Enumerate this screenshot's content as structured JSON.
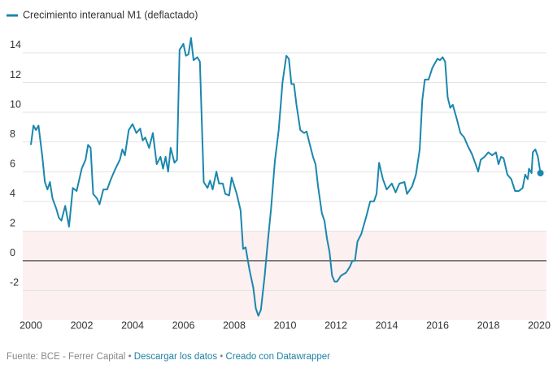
{
  "chart_data": {
    "type": "line",
    "x": [
      2000.0,
      2000.1,
      2000.2,
      2000.3,
      2000.45,
      2000.55,
      2000.65,
      2000.75,
      2000.85,
      2001.0,
      2001.1,
      2001.2,
      2001.35,
      2001.5,
      2001.65,
      2001.8,
      2002.0,
      2002.15,
      2002.25,
      2002.35,
      2002.45,
      2002.6,
      2002.7,
      2002.85,
      2003.0,
      2003.15,
      2003.3,
      2003.5,
      2003.6,
      2003.7,
      2003.85,
      2004.0,
      2004.15,
      2004.3,
      2004.4,
      2004.5,
      2004.65,
      2004.8,
      2004.95,
      2005.1,
      2005.2,
      2005.3,
      2005.4,
      2005.5,
      2005.65,
      2005.75,
      2005.85,
      2006.0,
      2006.1,
      2006.2,
      2006.3,
      2006.4,
      2006.55,
      2006.65,
      2006.8,
      2006.95,
      2007.05,
      2007.15,
      2007.3,
      2007.4,
      2007.55,
      2007.65,
      2007.8,
      2007.9,
      2008.1,
      2008.25,
      2008.35,
      2008.45,
      2008.6,
      2008.75,
      2008.85,
      2008.95,
      2009.05,
      2009.2,
      2009.3,
      2009.45,
      2009.6,
      2009.75,
      2009.9,
      2010.05,
      2010.15,
      2010.25,
      2010.35,
      2010.45,
      2010.6,
      2010.75,
      2010.85,
      2010.95,
      2011.1,
      2011.2,
      2011.3,
      2011.45,
      2011.55,
      2011.65,
      2011.75,
      2011.85,
      2011.95,
      2012.05,
      2012.2,
      2012.4,
      2012.55,
      2012.65,
      2012.75,
      2012.85,
      2013.0,
      2013.1,
      2013.2,
      2013.35,
      2013.5,
      2013.6,
      2013.7,
      2013.85,
      2014.0,
      2014.2,
      2014.35,
      2014.5,
      2014.7,
      2014.8,
      2015.0,
      2015.15,
      2015.3,
      2015.4,
      2015.5,
      2015.65,
      2015.8,
      2016.0,
      2016.1,
      2016.2,
      2016.3,
      2016.4,
      2016.5,
      2016.6,
      2016.75,
      2016.9,
      2017.05,
      2017.2,
      2017.35,
      2017.5,
      2017.6,
      2017.7,
      2017.85,
      2018.0,
      2018.15,
      2018.3,
      2018.4,
      2018.5,
      2018.6,
      2018.75,
      2018.9,
      2019.05,
      2019.2,
      2019.35,
      2019.45,
      2019.55,
      2019.6,
      2019.7,
      2019.75,
      2019.85,
      2019.95,
      2020.05
    ],
    "series": [
      {
        "name": "Crecimiento interanual M1 (deflactado)",
        "color": "#1b87ad",
        "values": [
          7.8,
          9.1,
          8.8,
          9.1,
          7.0,
          5.3,
          4.8,
          5.3,
          4.2,
          3.5,
          2.9,
          2.7,
          3.7,
          2.3,
          4.9,
          4.7,
          6.2,
          6.8,
          7.8,
          7.6,
          4.5,
          4.2,
          3.8,
          4.8,
          4.8,
          5.5,
          6.1,
          6.8,
          7.5,
          7.1,
          8.8,
          9.2,
          8.6,
          8.9,
          8.1,
          8.3,
          7.6,
          8.6,
          6.5,
          7.0,
          6.2,
          7.0,
          6.0,
          7.6,
          6.6,
          6.8,
          14.2,
          14.6,
          13.8,
          13.9,
          15.0,
          13.5,
          13.7,
          13.4,
          5.3,
          4.9,
          5.4,
          4.8,
          6.0,
          5.2,
          5.2,
          4.5,
          4.4,
          5.6,
          4.5,
          3.4,
          0.8,
          0.9,
          -0.6,
          -1.8,
          -3.2,
          -3.7,
          -3.3,
          -1.0,
          0.9,
          3.5,
          6.7,
          8.8,
          12.0,
          13.8,
          13.6,
          11.9,
          11.9,
          10.5,
          8.8,
          8.6,
          8.7,
          8.0,
          7.0,
          6.5,
          5.0,
          3.2,
          2.7,
          1.5,
          0.6,
          -1.0,
          -1.4,
          -1.4,
          -1.0,
          -0.8,
          -0.4,
          0.0,
          0.0,
          1.3,
          1.8,
          2.4,
          3.0,
          4.0,
          4.0,
          4.5,
          6.6,
          5.5,
          4.8,
          5.2,
          4.6,
          5.2,
          5.3,
          4.5,
          5.0,
          5.8,
          7.5,
          10.8,
          12.2,
          12.2,
          13.0,
          13.6,
          13.5,
          13.7,
          13.4,
          11.0,
          10.3,
          10.5,
          9.6,
          8.6,
          8.3,
          7.7,
          7.2,
          6.5,
          6.0,
          6.8,
          7.0,
          7.3,
          7.1,
          7.3,
          6.5,
          7.0,
          6.9,
          5.8,
          5.5,
          4.7,
          4.7,
          4.9,
          5.8,
          5.5,
          6.2,
          5.9,
          7.3,
          7.5,
          7.0,
          5.9
        ]
      }
    ],
    "xlim": [
      2000,
      2020
    ],
    "xticks": [
      2000,
      2002,
      2004,
      2006,
      2008,
      2010,
      2012,
      2014,
      2016,
      2018,
      2020
    ],
    "ylim": [
      -4,
      15.2
    ],
    "yticks": [
      -2,
      0,
      2,
      4,
      6,
      8,
      10,
      12,
      14
    ],
    "grid": true,
    "band": {
      "range": [
        -4,
        2
      ],
      "color": "#fcf0f1"
    },
    "footer": {
      "source": "Fuente: BCE - Ferrer Capital",
      "separator": "•",
      "download": "Descargar los datos",
      "credit": "Creado con Datawrapper"
    }
  }
}
